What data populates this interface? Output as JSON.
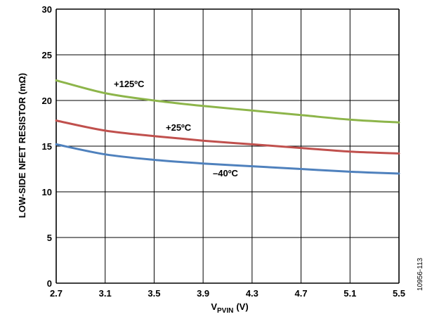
{
  "chart_data": {
    "type": "line",
    "xlabel_main": "V",
    "xlabel_sub": "PVIN",
    "xlabel_unit": "(V)",
    "ylabel": "LOW-SIDE NFET RESISTOR (mΩ)",
    "xlim": [
      2.7,
      5.5
    ],
    "ylim": [
      0,
      30
    ],
    "x_ticks": [
      "2.7",
      "3.1",
      "3.5",
      "3.9",
      "4.3",
      "4.7",
      "5.1",
      "5.5"
    ],
    "y_ticks": [
      "0",
      "5",
      "10",
      "15",
      "20",
      "25",
      "30"
    ],
    "grid": true,
    "series": [
      {
        "name": "+125ºC",
        "color": "#8db54a",
        "x": [
          2.7,
          3.1,
          3.5,
          3.9,
          4.3,
          4.7,
          5.1,
          5.5
        ],
        "y": [
          22.2,
          20.8,
          20.0,
          19.4,
          18.9,
          18.4,
          17.9,
          17.6
        ]
      },
      {
        "name": "+25ºC",
        "color": "#c0504d",
        "x": [
          2.7,
          3.1,
          3.5,
          3.9,
          4.3,
          4.7,
          5.1,
          5.5
        ],
        "y": [
          17.8,
          16.7,
          16.1,
          15.6,
          15.2,
          14.8,
          14.4,
          14.2
        ]
      },
      {
        "name": "–40ºC",
        "color": "#4f81bd",
        "x": [
          2.7,
          3.1,
          3.5,
          3.9,
          4.3,
          4.7,
          5.1,
          5.5
        ],
        "y": [
          15.2,
          14.1,
          13.5,
          13.1,
          12.8,
          12.5,
          12.2,
          12.0
        ]
      }
    ],
    "figure_id": "10956-113"
  }
}
